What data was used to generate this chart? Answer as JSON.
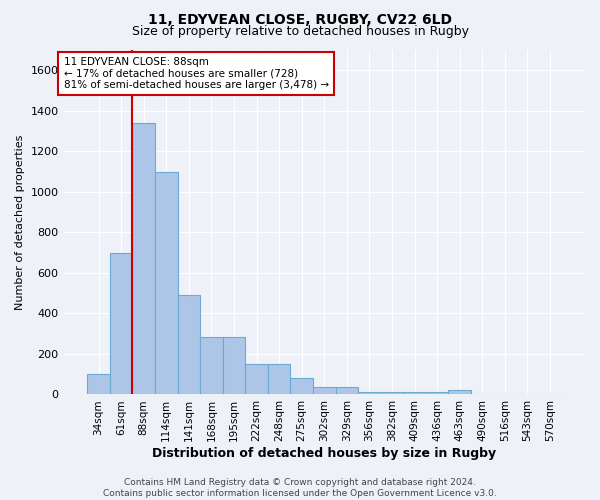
{
  "title": "11, EDYVEAN CLOSE, RUGBY, CV22 6LD",
  "subtitle": "Size of property relative to detached houses in Rugby",
  "xlabel": "Distribution of detached houses by size in Rugby",
  "ylabel": "Number of detached properties",
  "footer_line1": "Contains HM Land Registry data © Crown copyright and database right 2024.",
  "footer_line2": "Contains public sector information licensed under the Open Government Licence v3.0.",
  "categories": [
    "34sqm",
    "61sqm",
    "88sqm",
    "114sqm",
    "141sqm",
    "168sqm",
    "195sqm",
    "222sqm",
    "248sqm",
    "275sqm",
    "302sqm",
    "329sqm",
    "356sqm",
    "382sqm",
    "409sqm",
    "436sqm",
    "463sqm",
    "490sqm",
    "516sqm",
    "543sqm",
    "570sqm"
  ],
  "values": [
    103,
    700,
    1340,
    1100,
    490,
    285,
    285,
    148,
    148,
    80,
    35,
    35,
    10,
    10,
    10,
    10,
    20,
    0,
    0,
    0,
    0
  ],
  "bar_color": "#adc6e8",
  "bar_edge_color": "#6aaad4",
  "red_line_color": "#cc0000",
  "red_line_bar_index": 2,
  "annotation_text_line1": "11 EDYVEAN CLOSE: 88sqm",
  "annotation_text_line2": "← 17% of detached houses are smaller (728)",
  "annotation_text_line3": "81% of semi-detached houses are larger (3,478) →",
  "annotation_box_facecolor": "white",
  "annotation_box_edgecolor": "#cc0000",
  "ylim_max": 1700,
  "yticks": [
    0,
    200,
    400,
    600,
    800,
    1000,
    1200,
    1400,
    1600
  ],
  "background_color": "#eef2f8",
  "grid_color": "white",
  "title_fontsize": 10,
  "subtitle_fontsize": 9,
  "ylabel_fontsize": 8,
  "xlabel_fontsize": 9,
  "tick_fontsize": 8,
  "xtick_fontsize": 7.5,
  "footer_fontsize": 6.5
}
